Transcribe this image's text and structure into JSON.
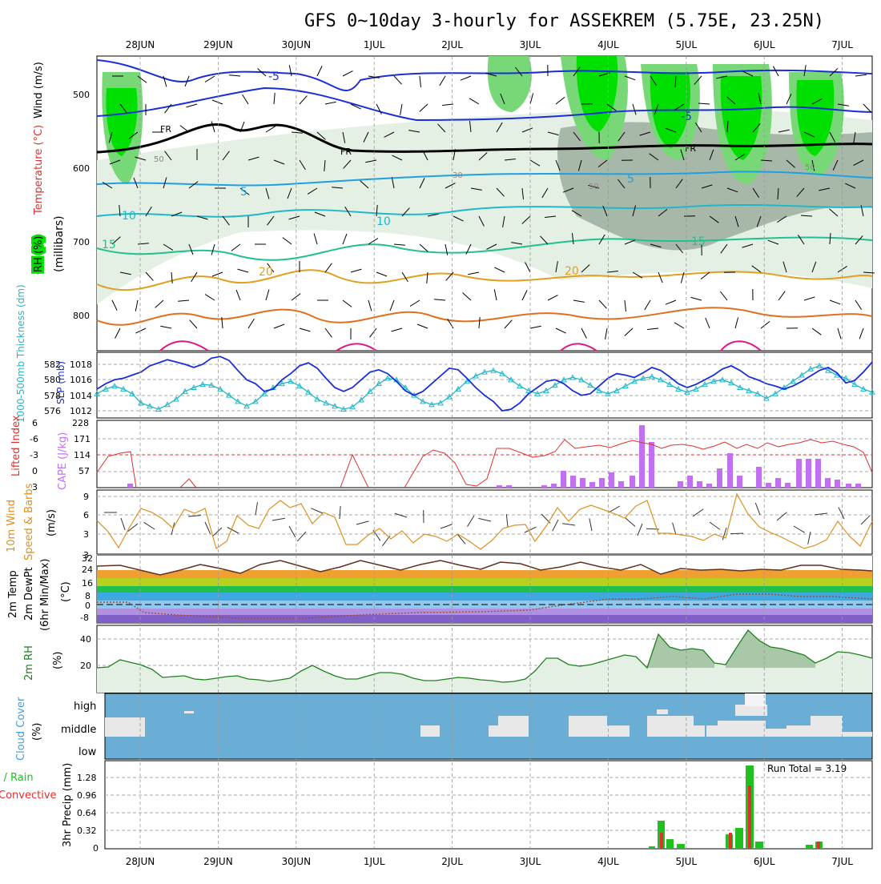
{
  "title": "GFS 0~10day 3-hourly for ASSEKREM (5.75E, 23.25N)",
  "dates": [
    "28JUN",
    "29JUN",
    "30JUN",
    "1JUL",
    "2JUL",
    "3JUL",
    "4JUL",
    "5JUL",
    "6JUL",
    "7JUL"
  ],
  "colors": {
    "rh_green": "#00e000",
    "rh_mid": "#78d878",
    "rh_gray": "#a8b8a8",
    "rh_light": "#e4f0e4",
    "slp": "#1a2ed8",
    "thickness": "#20b8c8",
    "lifted": "#e03030",
    "cape": "#c070f0",
    "wind": "#e09020",
    "temp_fill": "#f0a030",
    "rh2m": "#208020",
    "cloud": "#6aaed6",
    "cloud_gap": "#e8e8e8",
    "precip_total": "#20c020",
    "precip_conv": "#e03030"
  },
  "panels": {
    "upper": {
      "ylabel": "(millibars)",
      "yticks": [
        500,
        600,
        700,
        800
      ],
      "label_rh": "RH (%)",
      "label_temp": "Temperature (°C)",
      "label_wind": "Wind (m/s)",
      "contour_labels": [
        "-5",
        "-5",
        "FR",
        "FR",
        "FR",
        "5",
        "5",
        "10",
        "10",
        "15",
        "15",
        "20",
        "20",
        "50",
        "50",
        "30",
        "50"
      ]
    },
    "slp": {
      "label_left": "1000-500mb Thickness (dm)",
      "label_right": "SLP (mb)",
      "thick_ticks": [
        "582",
        "580",
        "578",
        "576"
      ],
      "slp_ticks": [
        "1018",
        "1016",
        "1014",
        "1012"
      ]
    },
    "cape": {
      "label_left": "Lifted Index",
      "label_right": "CAPE (J/kg)",
      "li_ticks": [
        "-6",
        "-3",
        "0",
        "3",
        "6"
      ],
      "cape_ticks": [
        "228",
        "171",
        "114",
        "57"
      ]
    },
    "wind": {
      "label_left": "10m Wind",
      "label_right": "Speed & Barbs",
      "unit": "(m/s)",
      "ticks": [
        "9",
        "6",
        "3",
        "3"
      ]
    },
    "temp": {
      "label1": "2m Temp",
      "label2": "2m DewPt",
      "label3": "(6hr Min/Max)",
      "unit": "(°C)",
      "ticks": [
        "32",
        "24",
        "16",
        "8",
        "0",
        "-8"
      ]
    },
    "rh2m": {
      "label": "2m RH",
      "unit": "(%)",
      "ticks": [
        "40",
        "20"
      ]
    },
    "cloud": {
      "label": "Cloud Cover",
      "unit": "(%)",
      "levels": [
        "high",
        "middle",
        "low"
      ]
    },
    "precip": {
      "label1": "Total / Rain",
      "label2": "Convective",
      "label3": "3hr Precip (mm)",
      "ticks": [
        "1.28",
        "0.96",
        "0.64",
        "0.32",
        "0"
      ],
      "run_total": "Run Total = 3.19"
    }
  },
  "chart_data": {
    "type": "line",
    "x_step_hours": 3,
    "slp_mb": [
      1014.8,
      1015.5,
      1016,
      1016.2,
      1016.6,
      1017,
      1017.8,
      1018.2,
      1018.6,
      1018.3,
      1018,
      1017.6,
      1018,
      1018.8,
      1019,
      1018.5,
      1017.2,
      1016,
      1015.5,
      1014.5,
      1014.8,
      1016,
      1016.8,
      1017.8,
      1018.2,
      1017.5,
      1016.2,
      1015,
      1014.5,
      1015,
      1016,
      1017,
      1017.3,
      1016.8,
      1015.8,
      1014.6,
      1014,
      1014.5,
      1015.5,
      1016.5,
      1017.5,
      1017.3,
      1016.2,
      1015,
      1014,
      1013.2,
      1012,
      1012.2,
      1013,
      1014.2,
      1015,
      1015.8,
      1016,
      1015.5,
      1014.6,
      1014,
      1014.2,
      1015.2,
      1016.2,
      1016.8,
      1016.6,
      1016.3,
      1016.9,
      1017.6,
      1017.2,
      1016.4,
      1015.5,
      1015,
      1015.4,
      1016,
      1016.6,
      1017.4,
      1017.8,
      1017.2,
      1016.4,
      1016,
      1015.5,
      1015.2,
      1014.8,
      1015.2,
      1015.8,
      1016.5,
      1017.2,
      1017.6,
      1016.9,
      1015.6,
      1015.9,
      1017,
      1018.3
    ],
    "thickness_dm": [
      578.2,
      578.8,
      579.2,
      578.8,
      578.2,
      577,
      576.6,
      576.2,
      576.8,
      577.5,
      578.5,
      579,
      579.4,
      579.3,
      578.8,
      578,
      577.2,
      576.6,
      577.2,
      578.2,
      579,
      579.5,
      579.8,
      579.2,
      578.4,
      577.5,
      577,
      576.6,
      576.2,
      576.5,
      577.4,
      578.5,
      579.5,
      580.2,
      580,
      579,
      578,
      577.2,
      576.8,
      577,
      577.8,
      578.8,
      579.8,
      580.5,
      581,
      581.2,
      580.8,
      580,
      579.2,
      578.6,
      578.2,
      578.6,
      579.3,
      580,
      580.3,
      580,
      579.3,
      578.6,
      578.2,
      578.6,
      579.2,
      579.8,
      580.2,
      580.4,
      580,
      579.4,
      578.8,
      578.4,
      578.8,
      579.4,
      579.8,
      580,
      579.6,
      579,
      578.6,
      578.2,
      577.6,
      578.2,
      579,
      579.8,
      580.6,
      581.4,
      581.8,
      581.2,
      580.6,
      580.2,
      579.4,
      578.8,
      578.4
    ]
  }
}
